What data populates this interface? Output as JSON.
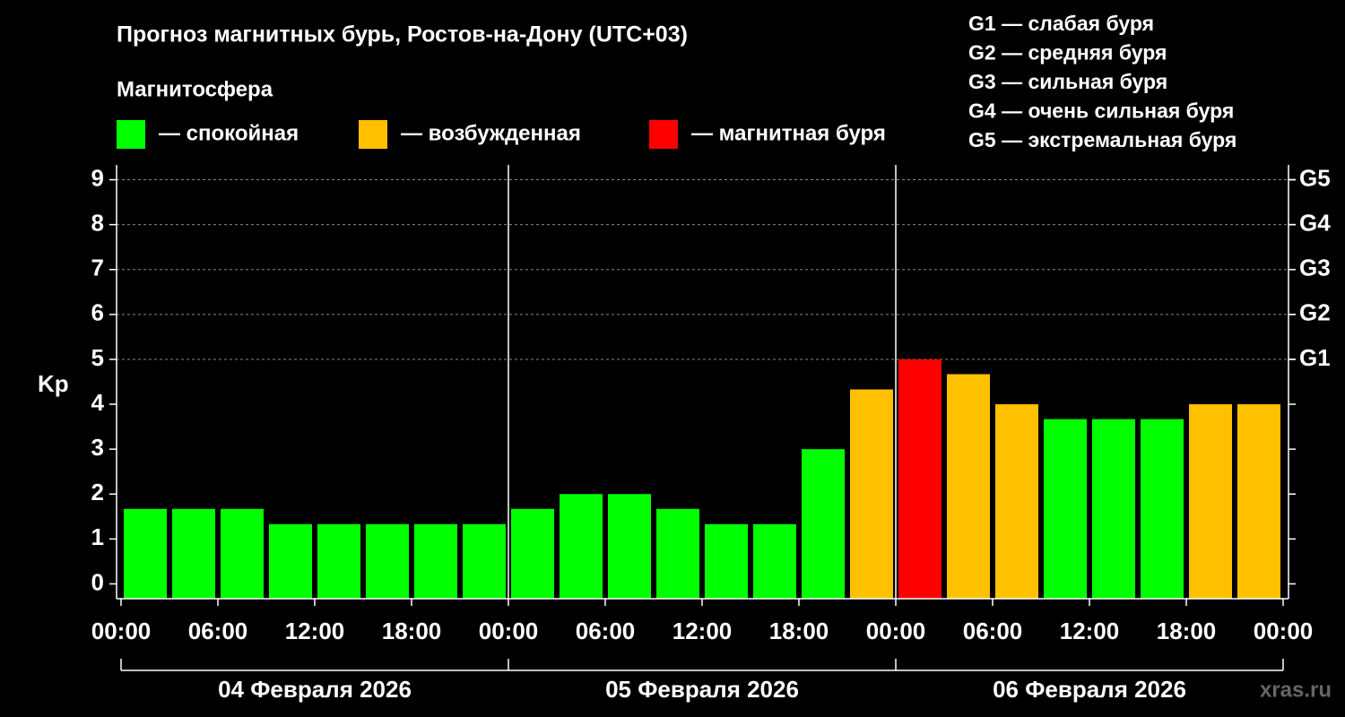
{
  "chart_data": {
    "type": "bar",
    "title": "Прогноз магнитных бурь, Ростов-на-Дону (UTC+03)",
    "legend_title": "Магнитосфера",
    "legend": [
      {
        "label": "— спокойная",
        "color": "#00ff00"
      },
      {
        "label": "— возбужденная",
        "color": "#ffc000"
      },
      {
        "label": "— магнитная буря",
        "color": "#ff0000"
      }
    ],
    "g_scale": [
      "G1 — слабая буря",
      "G2 — средняя буря",
      "G3 — сильная буря",
      "G4 — очень сильная буря",
      "G5 — экстремальная буря"
    ],
    "ylabel": "Kp",
    "x": [
      0,
      3,
      6,
      9,
      12,
      15,
      18,
      21,
      24,
      27,
      30,
      33,
      36,
      39,
      42,
      45,
      48,
      51,
      54,
      57,
      60,
      63,
      66,
      69
    ],
    "values": [
      1.67,
      1.67,
      1.67,
      1.33,
      1.33,
      1.33,
      1.33,
      1.33,
      1.67,
      2,
      2,
      1.67,
      1.33,
      1.33,
      3,
      4.33,
      5,
      4.67,
      4,
      3.67,
      3.67,
      3.67,
      4,
      4
    ],
    "colors": [
      "#00ff00",
      "#00ff00",
      "#00ff00",
      "#00ff00",
      "#00ff00",
      "#00ff00",
      "#00ff00",
      "#00ff00",
      "#00ff00",
      "#00ff00",
      "#00ff00",
      "#00ff00",
      "#00ff00",
      "#00ff00",
      "#00ff00",
      "#ffc000",
      "#ff0000",
      "#ffc000",
      "#ffc000",
      "#00ff00",
      "#00ff00",
      "#00ff00",
      "#ffc000",
      "#ffc000"
    ],
    "xlim": [
      0,
      72
    ],
    "xticks": [
      {
        "value": 0,
        "label": "00:00"
      },
      {
        "value": 6,
        "label": "06:00"
      },
      {
        "value": 12,
        "label": "12:00"
      },
      {
        "value": 18,
        "label": "18:00"
      },
      {
        "value": 24,
        "label": "00:00"
      },
      {
        "value": 30,
        "label": "06:00"
      },
      {
        "value": 36,
        "label": "12:00"
      },
      {
        "value": 42,
        "label": "18:00"
      },
      {
        "value": 48,
        "label": "00:00"
      },
      {
        "value": 54,
        "label": "06:00"
      },
      {
        "value": 60,
        "label": "12:00"
      },
      {
        "value": 66,
        "label": "18:00"
      },
      {
        "value": 72,
        "label": "00:00"
      }
    ],
    "days": [
      "04 Февраля 2026",
      "05 Февраля 2026",
      "06 Февраля 2026"
    ],
    "ylim": [
      -0.33,
      9.33
    ],
    "yticks": [
      0,
      1,
      2,
      3,
      4,
      5,
      6,
      7,
      8,
      9
    ],
    "y2lim": [
      -0.33,
      9.33
    ],
    "y2ticks": [
      {
        "value": 5,
        "label": "G1"
      },
      {
        "value": 6,
        "label": "G2"
      },
      {
        "value": 7,
        "label": "G3"
      },
      {
        "value": 8,
        "label": "G4"
      },
      {
        "value": 9,
        "label": "G5"
      }
    ],
    "grid": true,
    "watermark": "xras.ru"
  }
}
